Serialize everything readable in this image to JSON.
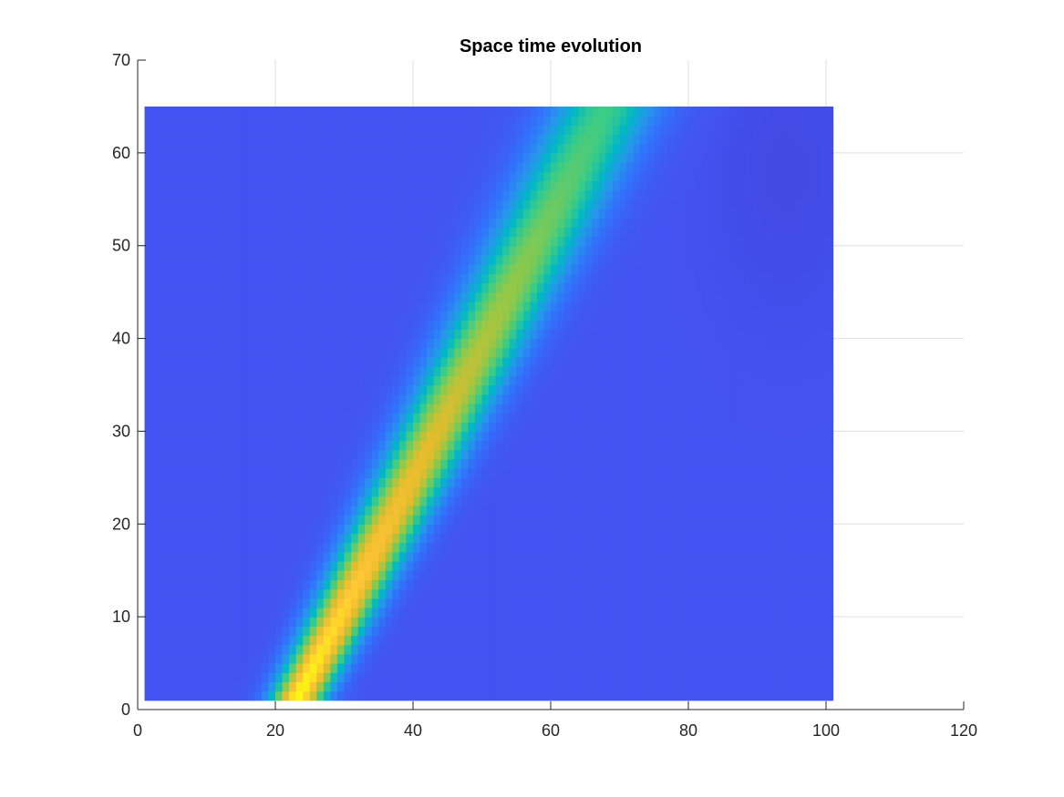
{
  "chart_data": {
    "type": "heatmap",
    "title": "Space time evolution",
    "xlabel": "",
    "ylabel": "",
    "xlim": [
      0,
      120
    ],
    "ylim": [
      0,
      70
    ],
    "x_ticks": [
      0,
      20,
      40,
      60,
      80,
      100,
      120
    ],
    "y_ticks": [
      0,
      10,
      20,
      30,
      40,
      50,
      60,
      70
    ],
    "x_range": [
      1,
      101
    ],
    "y_range": [
      1,
      65
    ],
    "x_steps": 100,
    "y_steps": 64,
    "grid": true,
    "colormap": "parula",
    "pulse": {
      "center_x_at_y1": 23,
      "center_x_at_y65": 68,
      "width_at_y1": 2.8,
      "width_at_y65": 5.5,
      "peak_at_y1": 1.0,
      "peak_at_y65": 0.55
    },
    "trough": {
      "x_center": 94,
      "y_center": 58,
      "x_width": 8,
      "y_width": 12,
      "depth": 0.04
    },
    "colors": {
      "background_level": "#4353F2",
      "trough_min": "#3D26A8",
      "peak": "#F9FB0E",
      "axis": "#262626",
      "grid": "#DFDFDF"
    }
  }
}
